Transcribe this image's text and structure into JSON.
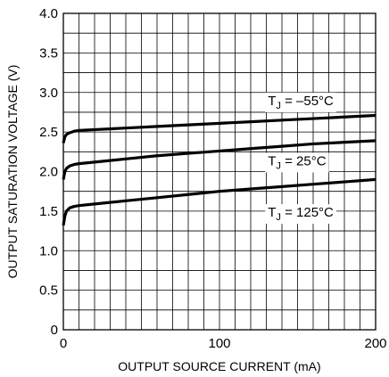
{
  "chart_data": {
    "type": "line",
    "title": "",
    "xlabel": "OUTPUT SOURCE CURRENT (mA)",
    "ylabel": "OUTPUT SATURATION VOLTAGE (V)",
    "xlim": [
      0,
      200
    ],
    "ylim": [
      0,
      4.0
    ],
    "grid": true,
    "x_ticks": [
      0,
      100,
      200
    ],
    "x_tick_labels": [
      "0",
      "100",
      "200"
    ],
    "y_ticks": [
      0,
      0.5,
      1.0,
      1.5,
      2.0,
      2.5,
      3.0,
      3.5,
      4.0
    ],
    "y_tick_labels": [
      "0",
      "0.5",
      "1.0",
      "1.5",
      "2.0",
      "2.5",
      "3.0",
      "3.5",
      "4.0"
    ],
    "line_color": "#000000",
    "grid_color": "#000000",
    "series": [
      {
        "label": {
          "main": "T",
          "sub": "J",
          "rest": " = –55°C"
        },
        "label_at": {
          "x": 131,
          "y": 2.84
        },
        "points": [
          [
            0,
            2.36
          ],
          [
            1,
            2.44
          ],
          [
            2,
            2.47
          ],
          [
            4,
            2.49
          ],
          [
            7,
            2.51
          ],
          [
            10,
            2.52
          ],
          [
            20,
            2.53
          ],
          [
            40,
            2.55
          ],
          [
            60,
            2.57
          ],
          [
            80,
            2.59
          ],
          [
            100,
            2.61
          ],
          [
            120,
            2.63
          ],
          [
            140,
            2.65
          ],
          [
            160,
            2.67
          ],
          [
            180,
            2.69
          ],
          [
            200,
            2.71
          ]
        ]
      },
      {
        "label": {
          "main": "T",
          "sub": "J",
          "rest": " = 25°C"
        },
        "label_at": {
          "x": 131,
          "y": 2.08
        },
        "points": [
          [
            0,
            1.9
          ],
          [
            1,
            2.0
          ],
          [
            2,
            2.04
          ],
          [
            4,
            2.07
          ],
          [
            7,
            2.09
          ],
          [
            10,
            2.1
          ],
          [
            20,
            2.12
          ],
          [
            40,
            2.16
          ],
          [
            60,
            2.2
          ],
          [
            80,
            2.23
          ],
          [
            100,
            2.26
          ],
          [
            120,
            2.29
          ],
          [
            140,
            2.32
          ],
          [
            160,
            2.35
          ],
          [
            180,
            2.37
          ],
          [
            200,
            2.39
          ]
        ]
      },
      {
        "label": {
          "main": "T",
          "sub": "J",
          "rest": " = 125°C"
        },
        "label_at": {
          "x": 131,
          "y": 1.43
        },
        "points": [
          [
            0,
            1.32
          ],
          [
            1,
            1.44
          ],
          [
            2,
            1.5
          ],
          [
            4,
            1.54
          ],
          [
            7,
            1.56
          ],
          [
            10,
            1.57
          ],
          [
            20,
            1.59
          ],
          [
            40,
            1.63
          ],
          [
            60,
            1.67
          ],
          [
            80,
            1.71
          ],
          [
            100,
            1.75
          ],
          [
            120,
            1.78
          ],
          [
            140,
            1.81
          ],
          [
            160,
            1.84
          ],
          [
            180,
            1.87
          ],
          [
            200,
            1.9
          ]
        ]
      }
    ]
  }
}
